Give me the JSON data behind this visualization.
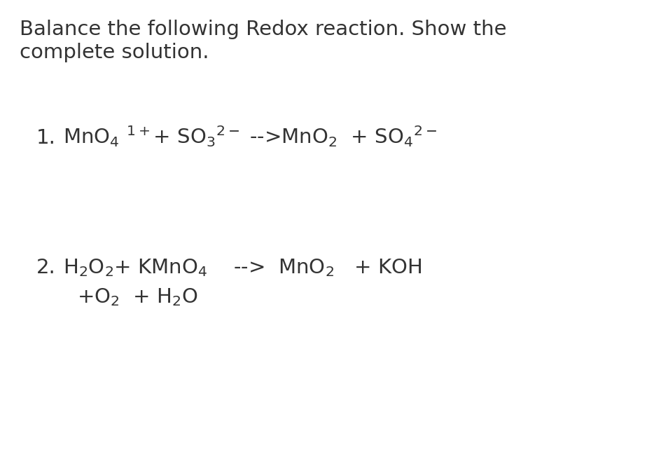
{
  "background_color": "#ffffff",
  "text_color": "#333333",
  "title_line1": "Balance the following Redox reaction. Show the",
  "title_line2": "complete solution.",
  "title_fontsize": 21,
  "body_fontsize": 21,
  "fig_width": 9.45,
  "fig_height": 6.75,
  "dpi": 100
}
